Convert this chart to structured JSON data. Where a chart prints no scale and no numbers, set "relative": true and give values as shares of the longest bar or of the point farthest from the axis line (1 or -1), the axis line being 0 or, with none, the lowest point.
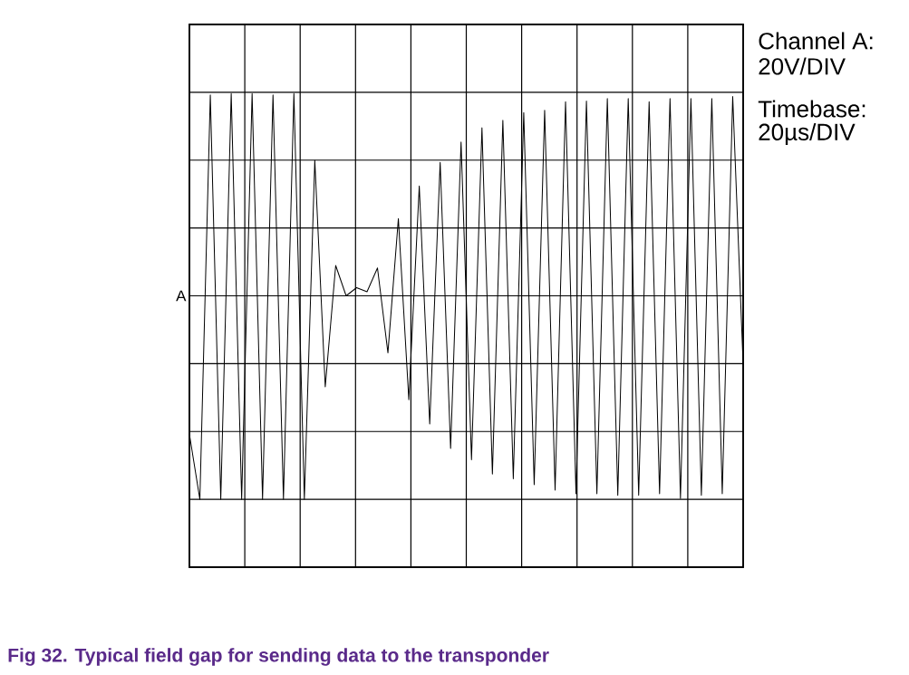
{
  "chart_data": {
    "type": "line",
    "relative": true,
    "grid": true,
    "color": "#000000",
    "title": "Fig 32. Typical field gap for sending data to the transponder",
    "annotations": [
      "A",
      "Channel A:",
      "20V/DIV",
      "Timebase:",
      "20µs/DIV"
    ],
    "categories": [
      null,
      null,
      null,
      null,
      null,
      null,
      null,
      null,
      null,
      null,
      null,
      null,
      null,
      null,
      null,
      null,
      null,
      null,
      null,
      null,
      null,
      null,
      null,
      null,
      null,
      null,
      null,
      null,
      null,
      null,
      null,
      null,
      null,
      null,
      null,
      null,
      null,
      null,
      null,
      null,
      null,
      null,
      null,
      null,
      null,
      null,
      null,
      null,
      null,
      null,
      null,
      null,
      null,
      null
    ],
    "values": [
      -0.68,
      -1,
      0.987,
      -1,
      0.994,
      -1,
      0.994,
      -1,
      0.987,
      -1,
      0.994,
      -1,
      0.666,
      -0.447,
      0.149,
      0.0,
      0.04,
      0.02,
      0.137,
      -0.28,
      0.379,
      -0.511,
      0.54,
      -0.63,
      0.656,
      -0.75,
      0.756,
      -0.806,
      0.826,
      -0.876,
      0.863,
      -0.899,
      0.9,
      -0.928,
      0.912,
      -0.955,
      0.954,
      -0.973,
      0.957,
      -0.973,
      0.969,
      -0.98,
      0.969,
      -0.98,
      0.954,
      -0.973,
      0.969,
      -0.996,
      0.969,
      -0.98,
      0.969,
      -0.973,
      0.979,
      -0.34
    ]
  }
}
